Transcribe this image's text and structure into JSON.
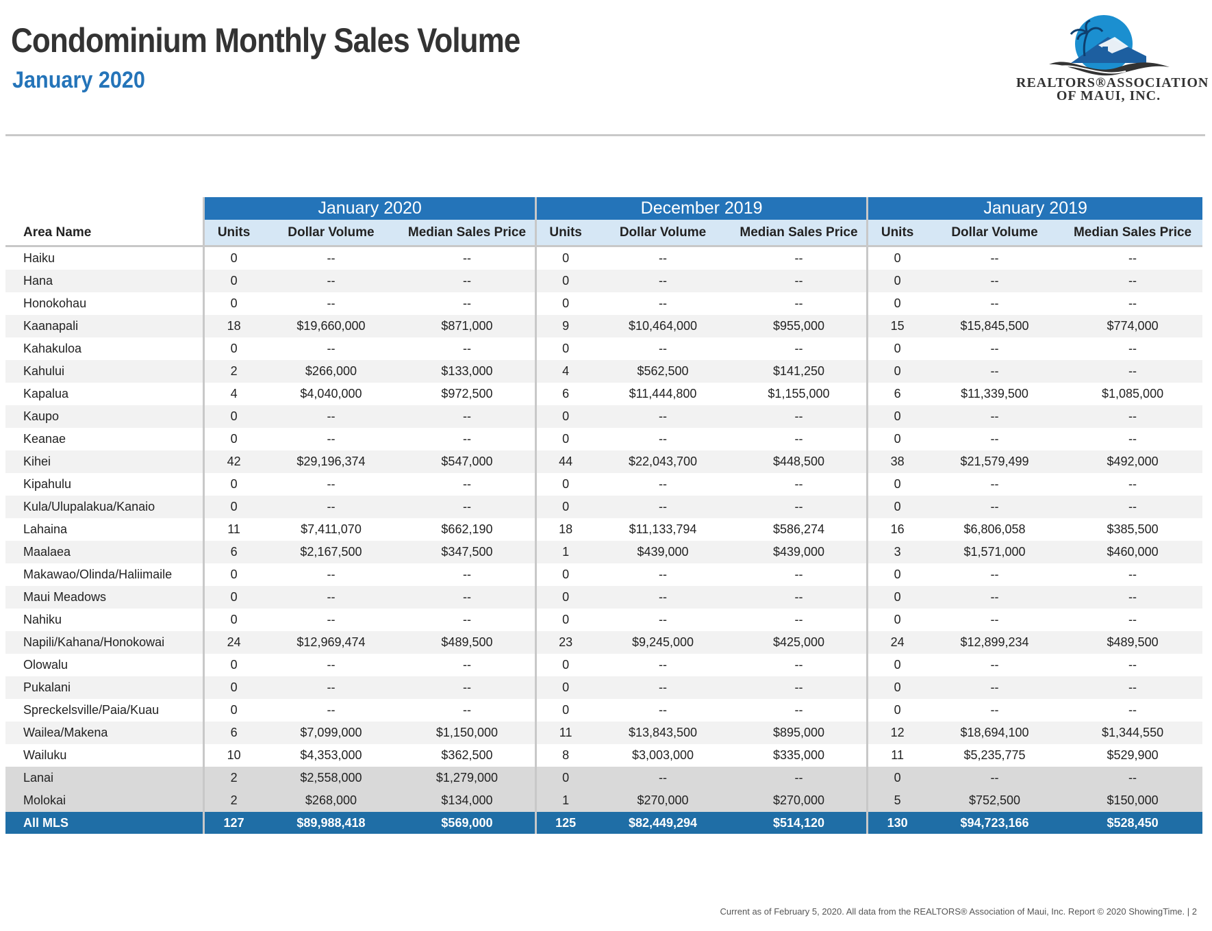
{
  "header": {
    "title": "Condominium Monthly Sales Volume",
    "subtitle": "January 2020"
  },
  "logo": {
    "line1": "REALTORS®ASSOCIATION",
    "line2": "OF MAUI, INC.",
    "colors": {
      "sun": "#1b8fd0",
      "roof": "#1d5fa0",
      "wave": "#333333"
    }
  },
  "table": {
    "area_header": "Area Name",
    "periods": [
      "January 2020",
      "December 2019",
      "January 2019"
    ],
    "sub_headers": [
      "Units",
      "Dollar Volume",
      "Median Sales Price"
    ],
    "rows": [
      {
        "area": "Haiku",
        "v": [
          "0",
          "--",
          "--",
          "0",
          "--",
          "--",
          "0",
          "--",
          "--"
        ]
      },
      {
        "area": "Hana",
        "v": [
          "0",
          "--",
          "--",
          "0",
          "--",
          "--",
          "0",
          "--",
          "--"
        ]
      },
      {
        "area": "Honokohau",
        "v": [
          "0",
          "--",
          "--",
          "0",
          "--",
          "--",
          "0",
          "--",
          "--"
        ]
      },
      {
        "area": "Kaanapali",
        "v": [
          "18",
          "$19,660,000",
          "$871,000",
          "9",
          "$10,464,000",
          "$955,000",
          "15",
          "$15,845,500",
          "$774,000"
        ]
      },
      {
        "area": "Kahakuloa",
        "v": [
          "0",
          "--",
          "--",
          "0",
          "--",
          "--",
          "0",
          "--",
          "--"
        ]
      },
      {
        "area": "Kahului",
        "v": [
          "2",
          "$266,000",
          "$133,000",
          "4",
          "$562,500",
          "$141,250",
          "0",
          "--",
          "--"
        ]
      },
      {
        "area": "Kapalua",
        "v": [
          "4",
          "$4,040,000",
          "$972,500",
          "6",
          "$11,444,800",
          "$1,155,000",
          "6",
          "$11,339,500",
          "$1,085,000"
        ]
      },
      {
        "area": "Kaupo",
        "v": [
          "0",
          "--",
          "--",
          "0",
          "--",
          "--",
          "0",
          "--",
          "--"
        ]
      },
      {
        "area": "Keanae",
        "v": [
          "0",
          "--",
          "--",
          "0",
          "--",
          "--",
          "0",
          "--",
          "--"
        ]
      },
      {
        "area": "Kihei",
        "v": [
          "42",
          "$29,196,374",
          "$547,000",
          "44",
          "$22,043,700",
          "$448,500",
          "38",
          "$21,579,499",
          "$492,000"
        ]
      },
      {
        "area": "Kipahulu",
        "v": [
          "0",
          "--",
          "--",
          "0",
          "--",
          "--",
          "0",
          "--",
          "--"
        ]
      },
      {
        "area": "Kula/Ulupalakua/Kanaio",
        "v": [
          "0",
          "--",
          "--",
          "0",
          "--",
          "--",
          "0",
          "--",
          "--"
        ]
      },
      {
        "area": "Lahaina",
        "v": [
          "11",
          "$7,411,070",
          "$662,190",
          "18",
          "$11,133,794",
          "$586,274",
          "16",
          "$6,806,058",
          "$385,500"
        ]
      },
      {
        "area": "Maalaea",
        "v": [
          "6",
          "$2,167,500",
          "$347,500",
          "1",
          "$439,000",
          "$439,000",
          "3",
          "$1,571,000",
          "$460,000"
        ]
      },
      {
        "area": "Makawao/Olinda/Haliimaile",
        "v": [
          "0",
          "--",
          "--",
          "0",
          "--",
          "--",
          "0",
          "--",
          "--"
        ]
      },
      {
        "area": "Maui Meadows",
        "v": [
          "0",
          "--",
          "--",
          "0",
          "--",
          "--",
          "0",
          "--",
          "--"
        ]
      },
      {
        "area": "Nahiku",
        "v": [
          "0",
          "--",
          "--",
          "0",
          "--",
          "--",
          "0",
          "--",
          "--"
        ]
      },
      {
        "area": "Napili/Kahana/Honokowai",
        "v": [
          "24",
          "$12,969,474",
          "$489,500",
          "23",
          "$9,245,000",
          "$425,000",
          "24",
          "$12,899,234",
          "$489,500"
        ]
      },
      {
        "area": "Olowalu",
        "v": [
          "0",
          "--",
          "--",
          "0",
          "--",
          "--",
          "0",
          "--",
          "--"
        ]
      },
      {
        "area": "Pukalani",
        "v": [
          "0",
          "--",
          "--",
          "0",
          "--",
          "--",
          "0",
          "--",
          "--"
        ]
      },
      {
        "area": "Spreckelsville/Paia/Kuau",
        "v": [
          "0",
          "--",
          "--",
          "0",
          "--",
          "--",
          "0",
          "--",
          "--"
        ]
      },
      {
        "area": "Wailea/Makena",
        "v": [
          "6",
          "$7,099,000",
          "$1,150,000",
          "11",
          "$13,843,500",
          "$895,000",
          "12",
          "$18,694,100",
          "$1,344,550"
        ]
      },
      {
        "area": "Wailuku",
        "v": [
          "10",
          "$4,353,000",
          "$362,500",
          "8",
          "$3,003,000",
          "$335,000",
          "11",
          "$5,235,775",
          "$529,900"
        ]
      },
      {
        "area": "Lanai",
        "island": true,
        "v": [
          "2",
          "$2,558,000",
          "$1,279,000",
          "0",
          "--",
          "--",
          "0",
          "--",
          "--"
        ]
      },
      {
        "area": "Molokai",
        "island": true,
        "v": [
          "2",
          "$268,000",
          "$134,000",
          "1",
          "$270,000",
          "$270,000",
          "5",
          "$752,500",
          "$150,000"
        ]
      }
    ],
    "total": {
      "area": "All MLS",
      "v": [
        "127",
        "$89,988,418",
        "$569,000",
        "125",
        "$82,449,294",
        "$514,120",
        "130",
        "$94,723,166",
        "$528,450"
      ]
    }
  },
  "footer": {
    "text": "Current as of February 5, 2020. All data from the REALTORS® Association of Maui, Inc. Report © 2020 ShowingTime.",
    "separator": "|",
    "page": "2"
  }
}
